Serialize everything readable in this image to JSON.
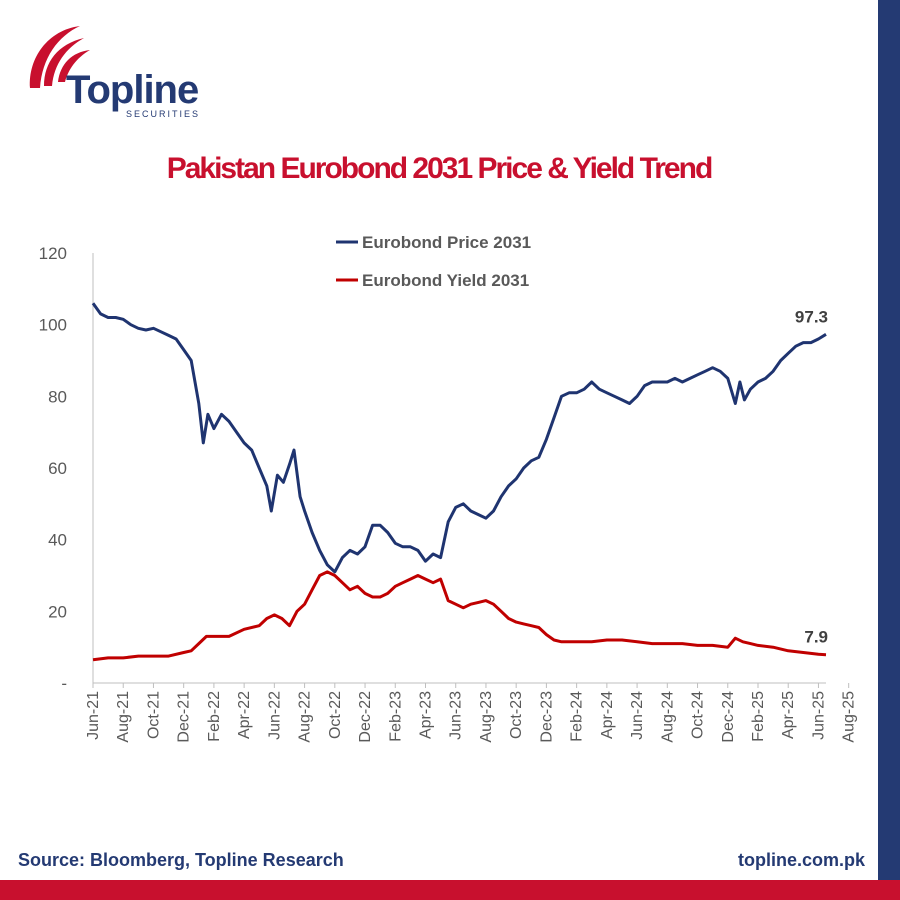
{
  "brand": {
    "name": "Topline",
    "sub": "SECURITIES",
    "logo_color": "#c8102e",
    "brand_color": "#243a73"
  },
  "footer": {
    "source": "Source: Bloomberg, Topline Research",
    "website": "topline.com.pk"
  },
  "chart_data": {
    "type": "line",
    "title": "Pakistan Eurobond 2031 Price & Yield Trend",
    "xlabel": "",
    "ylabel": "",
    "ylim": [
      0,
      120
    ],
    "yticks": [
      0,
      20,
      40,
      60,
      80,
      100,
      120
    ],
    "ytick_labels": [
      "-",
      "20",
      "40",
      "60",
      "80",
      "100",
      "120"
    ],
    "x_start": "Jun-21",
    "x_end": "Sep-25",
    "x_tick_labels": [
      "Jun-21",
      "Aug-21",
      "Oct-21",
      "Dec-21",
      "Feb-22",
      "Apr-22",
      "Jun-22",
      "Aug-22",
      "Oct-22",
      "Dec-22",
      "Feb-23",
      "Apr-23",
      "Jun-23",
      "Aug-23",
      "Oct-23",
      "Dec-23",
      "Feb-24",
      "Apr-24",
      "Jun-24",
      "Aug-24",
      "Oct-24",
      "Dec-24",
      "Feb-25",
      "Apr-25",
      "Jun-25",
      "Aug-25"
    ],
    "legend_position": "top-center",
    "series": [
      {
        "name": "Eurobond Price 2031",
        "color": "#1f3470",
        "end_label": "97.3",
        "points": [
          [
            0,
            106
          ],
          [
            0.5,
            103
          ],
          [
            1,
            102
          ],
          [
            1.5,
            102
          ],
          [
            2,
            101.5
          ],
          [
            2.5,
            100
          ],
          [
            3,
            99
          ],
          [
            3.5,
            98.5
          ],
          [
            4,
            99
          ],
          [
            4.5,
            98
          ],
          [
            5,
            97
          ],
          [
            5.5,
            96
          ],
          [
            6,
            93
          ],
          [
            6.5,
            90
          ],
          [
            7,
            78
          ],
          [
            7.3,
            67
          ],
          [
            7.6,
            75
          ],
          [
            8,
            71
          ],
          [
            8.5,
            75
          ],
          [
            9,
            73
          ],
          [
            9.5,
            70
          ],
          [
            10,
            67
          ],
          [
            10.5,
            65
          ],
          [
            11,
            60
          ],
          [
            11.5,
            55
          ],
          [
            11.8,
            48
          ],
          [
            12.2,
            58
          ],
          [
            12.6,
            56
          ],
          [
            13,
            61
          ],
          [
            13.3,
            65
          ],
          [
            13.7,
            52
          ],
          [
            14,
            48
          ],
          [
            14.5,
            42
          ],
          [
            15,
            37
          ],
          [
            15.5,
            33
          ],
          [
            16,
            31
          ],
          [
            16.5,
            35
          ],
          [
            17,
            37
          ],
          [
            17.5,
            36
          ],
          [
            18,
            38
          ],
          [
            18.5,
            44
          ],
          [
            19,
            44
          ],
          [
            19.5,
            42
          ],
          [
            20,
            39
          ],
          [
            20.5,
            38
          ],
          [
            21,
            38
          ],
          [
            21.5,
            37
          ],
          [
            22,
            34
          ],
          [
            22.5,
            36
          ],
          [
            23,
            35
          ],
          [
            23.5,
            45
          ],
          [
            24,
            49
          ],
          [
            24.5,
            50
          ],
          [
            25,
            48
          ],
          [
            25.5,
            47
          ],
          [
            26,
            46
          ],
          [
            26.5,
            48
          ],
          [
            27,
            52
          ],
          [
            27.5,
            55
          ],
          [
            28,
            57
          ],
          [
            28.5,
            60
          ],
          [
            29,
            62
          ],
          [
            29.5,
            63
          ],
          [
            30,
            68
          ],
          [
            30.5,
            74
          ],
          [
            31,
            80
          ],
          [
            31.5,
            81
          ],
          [
            32,
            81
          ],
          [
            32.5,
            82
          ],
          [
            33,
            84
          ],
          [
            33.5,
            82
          ],
          [
            34,
            81
          ],
          [
            34.5,
            80
          ],
          [
            35,
            79
          ],
          [
            35.5,
            78
          ],
          [
            36,
            80
          ],
          [
            36.5,
            83
          ],
          [
            37,
            84
          ],
          [
            37.5,
            84
          ],
          [
            38,
            84
          ],
          [
            38.5,
            85
          ],
          [
            39,
            84
          ],
          [
            39.5,
            85
          ],
          [
            40,
            86
          ],
          [
            40.5,
            87
          ],
          [
            41,
            88
          ],
          [
            41.5,
            87
          ],
          [
            42,
            85
          ],
          [
            42.5,
            78
          ],
          [
            42.8,
            84
          ],
          [
            43.1,
            79
          ],
          [
            43.5,
            82
          ],
          [
            44,
            84
          ],
          [
            44.5,
            85
          ],
          [
            45,
            87
          ],
          [
            45.5,
            90
          ],
          [
            46,
            92
          ],
          [
            46.5,
            94
          ],
          [
            47,
            95
          ],
          [
            47.5,
            95
          ],
          [
            48,
            96
          ],
          [
            48.5,
            97.3
          ]
        ]
      },
      {
        "name": "Eurobond Yield 2031",
        "color": "#c00000",
        "end_label": "7.9",
        "points": [
          [
            0,
            6.5
          ],
          [
            1,
            7
          ],
          [
            2,
            7
          ],
          [
            3,
            7.5
          ],
          [
            4,
            7.5
          ],
          [
            5,
            7.5
          ],
          [
            6,
            8.5
          ],
          [
            6.5,
            9
          ],
          [
            7,
            11
          ],
          [
            7.5,
            13
          ],
          [
            8,
            13
          ],
          [
            9,
            13
          ],
          [
            10,
            15
          ],
          [
            11,
            16
          ],
          [
            11.5,
            18
          ],
          [
            12,
            19
          ],
          [
            12.5,
            18
          ],
          [
            13,
            16
          ],
          [
            13.5,
            20
          ],
          [
            14,
            22
          ],
          [
            14.5,
            26
          ],
          [
            15,
            30
          ],
          [
            15.5,
            31
          ],
          [
            16,
            30
          ],
          [
            16.5,
            28
          ],
          [
            17,
            26
          ],
          [
            17.5,
            27
          ],
          [
            18,
            25
          ],
          [
            18.5,
            24
          ],
          [
            19,
            24
          ],
          [
            19.5,
            25
          ],
          [
            20,
            27
          ],
          [
            20.5,
            28
          ],
          [
            21,
            29
          ],
          [
            21.5,
            30
          ],
          [
            22,
            29
          ],
          [
            22.5,
            28
          ],
          [
            23,
            29
          ],
          [
            23.5,
            23
          ],
          [
            24,
            22
          ],
          [
            24.5,
            21
          ],
          [
            25,
            22
          ],
          [
            25.5,
            22.5
          ],
          [
            26,
            23
          ],
          [
            26.5,
            22
          ],
          [
            27,
            20
          ],
          [
            27.5,
            18
          ],
          [
            28,
            17
          ],
          [
            28.5,
            16.5
          ],
          [
            29,
            16
          ],
          [
            29.5,
            15.5
          ],
          [
            30,
            13.5
          ],
          [
            30.5,
            12
          ],
          [
            31,
            11.5
          ],
          [
            31.5,
            11.5
          ],
          [
            32,
            11.5
          ],
          [
            33,
            11.5
          ],
          [
            34,
            12
          ],
          [
            35,
            12
          ],
          [
            36,
            11.5
          ],
          [
            37,
            11
          ],
          [
            38,
            11
          ],
          [
            39,
            11
          ],
          [
            40,
            10.5
          ],
          [
            41,
            10.5
          ],
          [
            42,
            10
          ],
          [
            42.5,
            12.5
          ],
          [
            43,
            11.5
          ],
          [
            43.5,
            11
          ],
          [
            44,
            10.5
          ],
          [
            45,
            10
          ],
          [
            46,
            9
          ],
          [
            47,
            8.5
          ],
          [
            48,
            8
          ],
          [
            48.5,
            7.9
          ]
        ]
      }
    ]
  }
}
